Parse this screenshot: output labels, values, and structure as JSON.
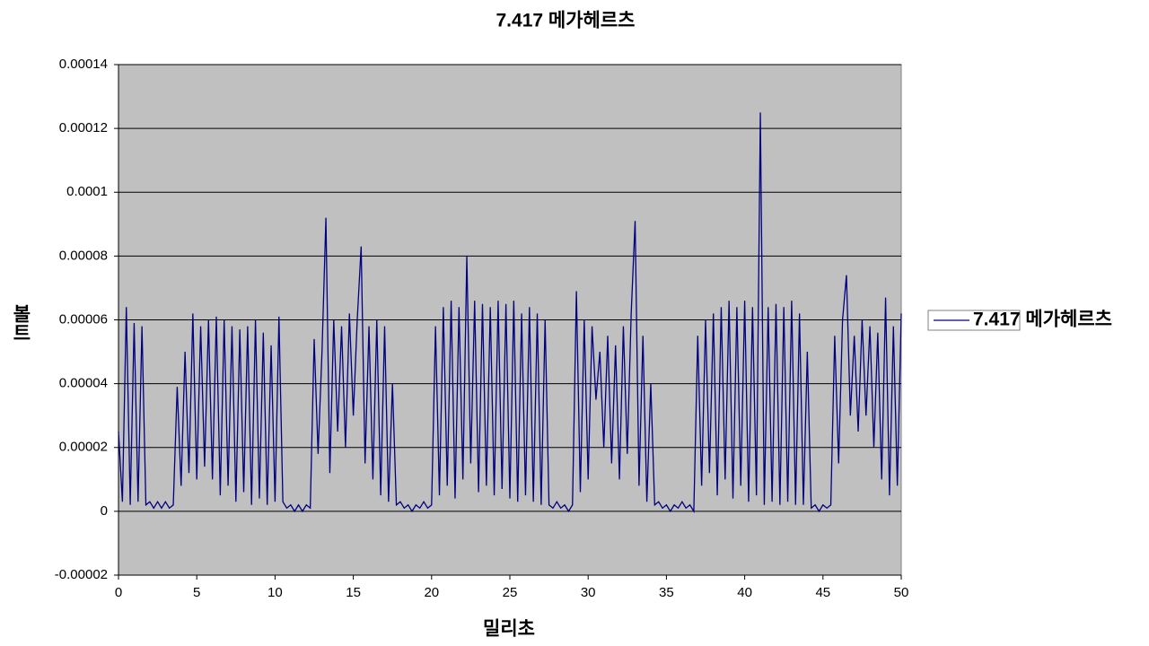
{
  "chart_data": {
    "type": "line",
    "title": "7.417 메가헤르츠",
    "x_label": "밀리초",
    "y_label": "볼트",
    "xlim": [
      0,
      50
    ],
    "xticks": [
      0,
      5,
      10,
      15,
      20,
      25,
      30,
      35,
      40,
      45,
      50
    ],
    "ylim": [
      -2e-05,
      0.00014
    ],
    "yticks": [
      -2e-05,
      0,
      2e-05,
      4e-05,
      6e-05,
      8e-05,
      0.0001,
      0.00012,
      0.00014
    ],
    "grid": true,
    "legend": "right",
    "background": "#c0c0c0",
    "x": [
      0,
      0.25,
      0.5,
      0.75,
      1,
      1.25,
      1.5,
      1.75,
      2,
      2.25,
      2.5,
      2.75,
      3,
      3.25,
      3.5,
      3.75,
      4,
      4.25,
      4.5,
      4.75,
      5,
      5.25,
      5.5,
      5.75,
      6,
      6.25,
      6.5,
      6.75,
      7,
      7.25,
      7.5,
      7.75,
      8,
      8.25,
      8.5,
      8.75,
      9,
      9.25,
      9.5,
      9.75,
      10,
      10.25,
      10.5,
      10.75,
      11,
      11.25,
      11.5,
      11.75,
      12,
      12.25,
      12.5,
      12.75,
      13,
      13.25,
      13.5,
      13.75,
      14,
      14.25,
      14.5,
      14.75,
      15,
      15.25,
      15.5,
      15.75,
      16,
      16.25,
      16.5,
      16.75,
      17,
      17.25,
      17.5,
      17.75,
      18,
      18.25,
      18.5,
      18.75,
      19,
      19.25,
      19.5,
      19.75,
      20,
      20.25,
      20.5,
      20.75,
      21,
      21.25,
      21.5,
      21.75,
      22,
      22.25,
      22.5,
      22.75,
      23,
      23.25,
      23.5,
      23.75,
      24,
      24.25,
      24.5,
      24.75,
      25,
      25.25,
      25.5,
      25.75,
      26,
      26.25,
      26.5,
      26.75,
      27,
      27.25,
      27.5,
      27.75,
      28,
      28.25,
      28.5,
      28.75,
      29,
      29.25,
      29.5,
      29.75,
      30,
      30.25,
      30.5,
      30.75,
      31,
      31.25,
      31.5,
      31.75,
      32,
      32.25,
      32.5,
      32.75,
      33,
      33.25,
      33.5,
      33.75,
      34,
      34.25,
      34.5,
      34.75,
      35,
      35.25,
      35.5,
      35.75,
      36,
      36.25,
      36.5,
      36.75,
      37,
      37.25,
      37.5,
      37.75,
      38,
      38.25,
      38.5,
      38.75,
      39,
      39.25,
      39.5,
      39.75,
      40,
      40.25,
      40.5,
      40.75,
      41,
      41.25,
      41.5,
      41.75,
      42,
      42.25,
      42.5,
      42.75,
      43,
      43.25,
      43.5,
      43.75,
      44,
      44.25,
      44.5,
      44.75,
      45,
      45.25,
      45.5,
      45.75,
      46,
      46.25,
      46.5,
      46.75,
      47,
      47.25,
      47.5,
      47.75,
      48,
      48.25,
      48.5,
      48.75,
      49,
      49.25,
      49.5,
      49.75,
      50
    ],
    "series": [
      {
        "name": "7.417 메가헤르츠",
        "color": "#000080",
        "values": [
          2.5e-05,
          3e-06,
          6.4e-05,
          2e-06,
          5.9e-05,
          3e-06,
          5.8e-05,
          2e-06,
          3e-06,
          1e-06,
          3e-06,
          1e-06,
          3e-06,
          1e-06,
          2e-06,
          3.9e-05,
          8e-06,
          5e-05,
          1.2e-05,
          6.2e-05,
          1e-05,
          5.8e-05,
          1.4e-05,
          6e-05,
          1e-05,
          6.1e-05,
          5e-06,
          6e-05,
          8e-06,
          5.8e-05,
          3e-06,
          5.7e-05,
          6e-06,
          5.8e-05,
          2e-06,
          6e-05,
          4e-06,
          5.6e-05,
          2e-06,
          5.2e-05,
          3e-06,
          6.1e-05,
          3e-06,
          1e-06,
          2e-06,
          0,
          2e-06,
          0,
          2e-06,
          1e-06,
          5.4e-05,
          1.8e-05,
          5e-05,
          9.2e-05,
          1.2e-05,
          6e-05,
          2.5e-05,
          5.8e-05,
          2e-05,
          6.2e-05,
          3e-05,
          6e-05,
          8.3e-05,
          1.5e-05,
          5.8e-05,
          1e-05,
          6e-05,
          5e-06,
          5.8e-05,
          3e-06,
          4e-05,
          2e-06,
          3e-06,
          1e-06,
          2e-06,
          0,
          2e-06,
          1e-06,
          3e-06,
          1e-06,
          2e-06,
          5.8e-05,
          5e-06,
          6.4e-05,
          8e-06,
          6.6e-05,
          4e-06,
          6.4e-05,
          1e-05,
          8e-05,
          1.5e-05,
          6.6e-05,
          6e-06,
          6.5e-05,
          8e-06,
          6.4e-05,
          5e-06,
          6.6e-05,
          7e-06,
          6.5e-05,
          4e-06,
          6.6e-05,
          3e-06,
          6.2e-05,
          5e-06,
          6.4e-05,
          3e-06,
          6.2e-05,
          2e-06,
          6e-05,
          2e-06,
          1e-06,
          3e-06,
          1e-06,
          2e-06,
          0,
          2e-06,
          6.9e-05,
          6e-06,
          6e-05,
          1e-05,
          5.8e-05,
          3.5e-05,
          5e-05,
          2e-05,
          5.5e-05,
          1.5e-05,
          5.2e-05,
          1e-05,
          5.8e-05,
          1.8e-05,
          6.2e-05,
          9.1e-05,
          8e-06,
          5.5e-05,
          3e-06,
          4e-05,
          2e-06,
          3e-06,
          1e-06,
          2e-06,
          0,
          2e-06,
          1e-06,
          3e-06,
          1e-06,
          2e-06,
          0,
          5.5e-05,
          8e-06,
          6e-05,
          1.2e-05,
          6.2e-05,
          5e-06,
          6.4e-05,
          1e-05,
          6.6e-05,
          4e-06,
          6.4e-05,
          8e-06,
          6.6e-05,
          3e-06,
          6.4e-05,
          5e-06,
          0.000125,
          2e-06,
          6.4e-05,
          3e-06,
          6.5e-05,
          2e-06,
          6.4e-05,
          3e-06,
          6.6e-05,
          2e-06,
          6.2e-05,
          2e-06,
          5e-05,
          1e-06,
          2e-06,
          0,
          2e-06,
          1e-06,
          2e-06,
          5.5e-05,
          1.5e-05,
          6e-05,
          7.4e-05,
          3e-05,
          5.5e-05,
          2.5e-05,
          6e-05,
          3e-05,
          5.8e-05,
          2e-05,
          5.6e-05,
          1e-05,
          6.7e-05,
          5e-06,
          5.8e-05,
          8e-06,
          6.2e-05
        ]
      }
    ]
  }
}
